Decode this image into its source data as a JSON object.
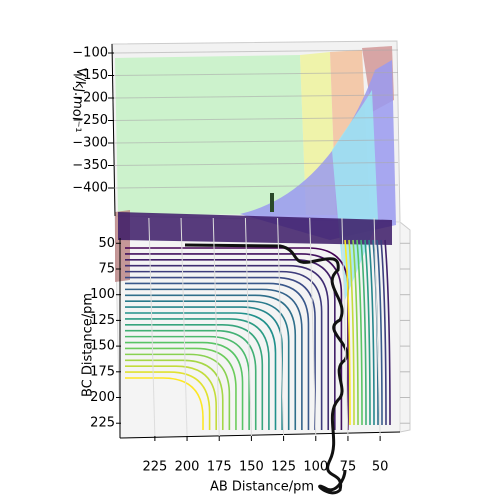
{
  "chart_data": {
    "type": "surface3d",
    "xlabel": "AB Distance/pm",
    "ylabel": "BC Distance/pm",
    "zlabel": "V/kJ.mol⁻¹",
    "xlim": [
      235,
      40
    ],
    "xticks": [
      225,
      200,
      175,
      150,
      125,
      100,
      75,
      50
    ],
    "ylim": [
      40,
      235
    ],
    "yticks": [
      50,
      75,
      100,
      125,
      150,
      175,
      200,
      225
    ],
    "zlim": [
      -90,
      -420
    ],
    "zticks": [
      {
        "value": -100,
        "label": "−100"
      },
      {
        "value": -150,
        "label": "−150"
      },
      {
        "value": -200,
        "label": "−200"
      },
      {
        "value": -250,
        "label": "−250"
      },
      {
        "value": -300,
        "label": "−300"
      },
      {
        "value": -350,
        "label": "−350"
      },
      {
        "value": -400,
        "label": "−400"
      }
    ],
    "grid": true
  }
}
